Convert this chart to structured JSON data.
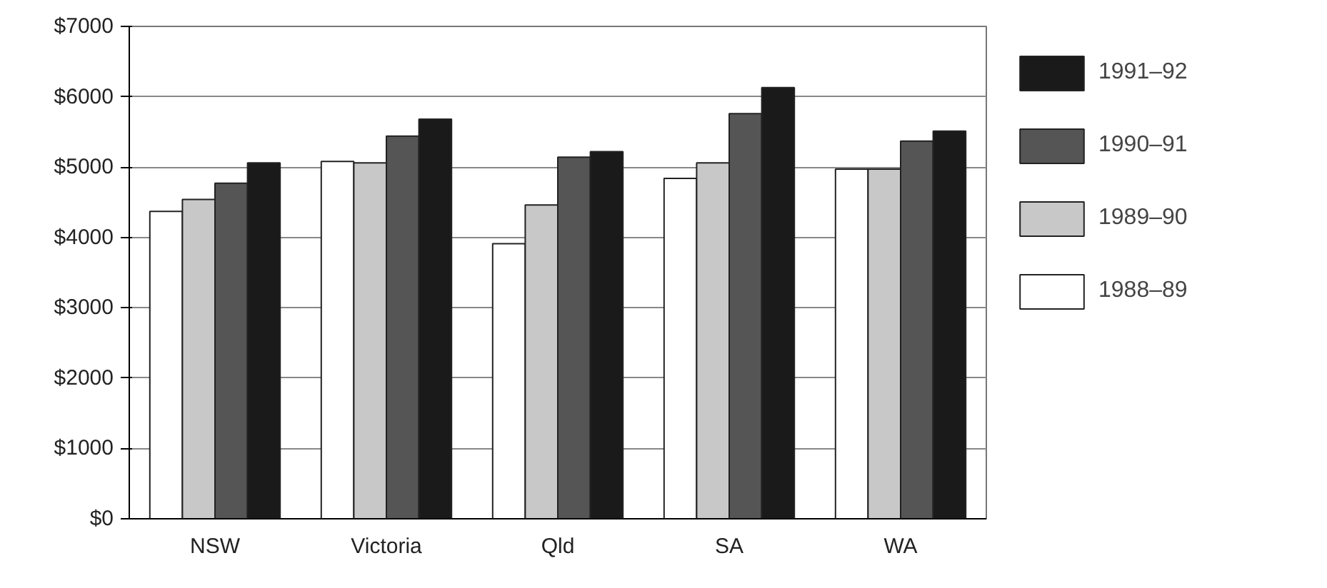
{
  "chart_data": {
    "type": "bar",
    "categories": [
      "NSW",
      "Victoria",
      "Qld",
      "SA",
      "WA"
    ],
    "series": [
      {
        "name": "1988–89",
        "color": "#ffffff",
        "values": [
          4370,
          5080,
          3910,
          4840,
          4970
        ]
      },
      {
        "name": "1989–90",
        "color": "#c8c8c8",
        "values": [
          4540,
          5060,
          4460,
          5060,
          4970
        ]
      },
      {
        "name": "1990–91",
        "color": "#555555",
        "values": [
          4770,
          5440,
          5140,
          5760,
          5370
        ]
      },
      {
        "name": "1991–92",
        "color": "#1a1a1a",
        "values": [
          5060,
          5680,
          5220,
          6130,
          5510
        ]
      }
    ],
    "ylim": [
      0,
      7000
    ],
    "yticks": [
      {
        "value": 0,
        "label": "$0"
      },
      {
        "value": 1000,
        "label": "$1000"
      },
      {
        "value": 2000,
        "label": "$2000"
      },
      {
        "value": 3000,
        "label": "$3000"
      },
      {
        "value": 4000,
        "label": "$4000"
      },
      {
        "value": 5000,
        "label": "$5000"
      },
      {
        "value": 6000,
        "label": "$6000"
      },
      {
        "value": 7000,
        "label": "$7000"
      }
    ],
    "grid": "y",
    "legend": "right"
  }
}
